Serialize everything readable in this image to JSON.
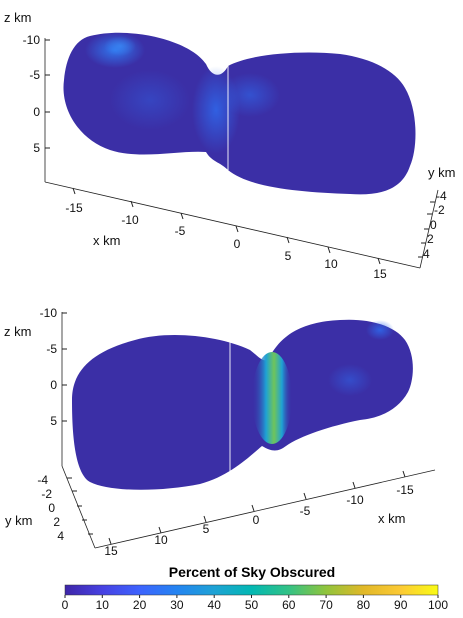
{
  "top_plot": {
    "z_label": "z km",
    "y_label": "y km",
    "x_label": "x km",
    "z_ticks": [
      "-10",
      "-5",
      "0",
      "5"
    ],
    "x_ticks": [
      "-15",
      "-10",
      "-5",
      "0",
      "5",
      "10",
      "15"
    ],
    "y_ticks": [
      "-4",
      "-2",
      "0",
      "2",
      "4"
    ]
  },
  "bottom_plot": {
    "z_label": "z km",
    "y_label": "y km",
    "x_label": "x km",
    "z_ticks": [
      "-10",
      "-5",
      "0",
      "5"
    ],
    "x_ticks": [
      "15",
      "10",
      "5",
      "0",
      "-5",
      "-10",
      "-15"
    ],
    "y_ticks": [
      "-4",
      "-2",
      "0",
      "2",
      "4"
    ]
  },
  "colorbar": {
    "title": "Percent of Sky Obscured",
    "ticks": [
      "0",
      "10",
      "20",
      "30",
      "40",
      "50",
      "60",
      "70",
      "80",
      "90",
      "100"
    ],
    "colors": [
      "#3e26a8",
      "#4741e2",
      "#3d63fe",
      "#2484f1",
      "#1ea2d5",
      "#03b8b3",
      "#33c285",
      "#90c43c",
      "#e1b828",
      "#fcca35",
      "#f9fb15"
    ]
  }
}
